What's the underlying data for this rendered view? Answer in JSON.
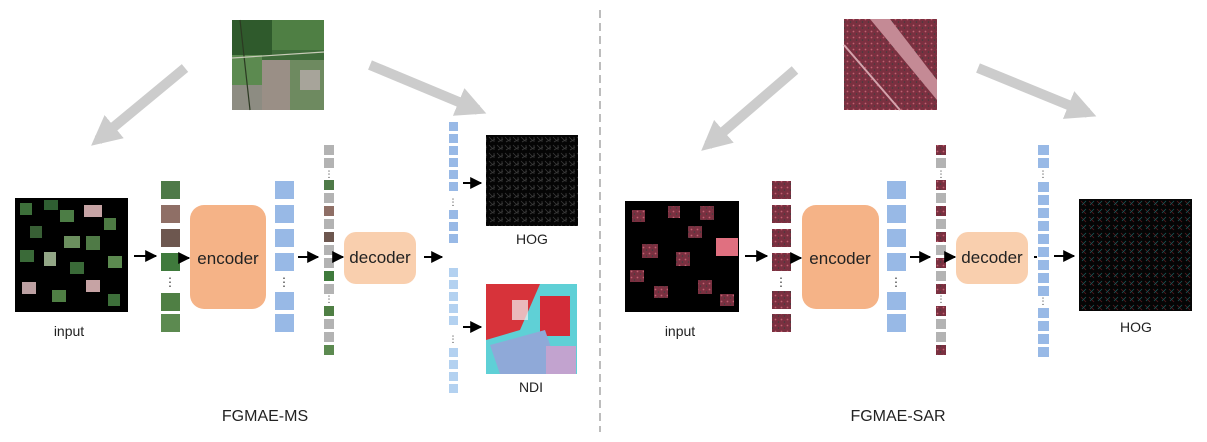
{
  "left_panel": {
    "caption": "FGMAE-MS",
    "input_label": "input",
    "encoder_label": "encoder",
    "decoder_label": "decoder",
    "target_labels": [
      "HOG",
      "NDI"
    ]
  },
  "right_panel": {
    "caption": "FGMAE-SAR",
    "input_label": "input",
    "encoder_label": "encoder",
    "decoder_label": "decoder",
    "target_labels": [
      "HOG"
    ]
  },
  "colors": {
    "encoder": "#f5b387",
    "decoder": "#f9cfae",
    "token_blue": "#98b9e6",
    "token_light_blue": "#b3d1f0",
    "mask_gray": "#b3b3b3",
    "arrow_gray": "#cccccc",
    "divider": "#999999",
    "ms_patch": "#4e7a48",
    "sar_patch": "#8a3b48"
  },
  "icons": [
    "ms-thumbnail-image",
    "sar-thumbnail-image",
    "hog-feature-image",
    "ndi-feature-image"
  ]
}
